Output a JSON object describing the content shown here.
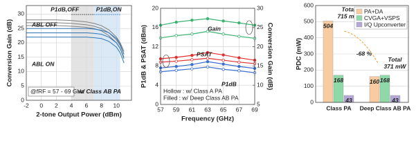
{
  "chart_data": [
    {
      "type": "line",
      "x_label": "2-tone Output Power (dBm)",
      "y_label": "Conversion Gain (dB)",
      "xlim": [
        -2,
        12
      ],
      "xticks": [
        -2,
        0,
        2,
        4,
        6,
        8,
        10
      ],
      "ylim": [
        0,
        33
      ],
      "yticks": [
        0,
        5,
        10,
        15,
        20,
        25,
        30
      ],
      "grid": true,
      "x": [
        -2,
        0,
        2,
        4,
        6,
        7,
        8,
        9,
        10,
        10.5,
        11
      ],
      "groups": [
        {
          "name": "ABL OFF",
          "color": "#7f7f7f",
          "curves": [
            [
              28,
              28,
              28,
              27.8,
              27.3,
              26.8,
              26,
              24.5,
              22,
              20,
              17
            ],
            [
              27,
              27,
              27,
              26.8,
              26.3,
              25.8,
              25,
              23.5,
              21,
              19,
              16
            ],
            [
              26,
              26,
              26,
              25.8,
              25.4,
              25,
              24.2,
              22.5,
              20,
              18,
              15
            ]
          ]
        },
        {
          "name": "ABL ON",
          "color": "#2e75b6",
          "curves": [
            [
              25,
              25,
              25,
              25,
              25,
              24.8,
              24.4,
              23.5,
              21.5,
              19.5,
              16
            ],
            [
              23.5,
              23.5,
              23.5,
              23.5,
              23.5,
              23.3,
              23,
              22,
              20,
              18,
              14.5
            ],
            [
              22,
              22,
              22,
              22,
              22,
              21.8,
              21.5,
              20.5,
              18.5,
              16.5,
              13
            ]
          ]
        }
      ],
      "regions": [
        {
          "label": "P1dB,OFF",
          "range": [
            4,
            7
          ],
          "color": "#d9d9d9"
        },
        {
          "label": "P1dB,ON",
          "range": [
            7,
            10.5
          ],
          "color": "#cfe2f3"
        }
      ],
      "annotations": [
        "@fRF = 57 - 69 GHz",
        "w/ Class AB PA"
      ]
    },
    {
      "type": "line",
      "x_label": "Frequency (GHz)",
      "y_label": "P1dB & PSAT (dBm)",
      "y2_label": "Conversion Gain (dB)",
      "xlim": [
        57,
        69
      ],
      "xticks": [
        57,
        59,
        61,
        63,
        65,
        67,
        69
      ],
      "ylim": [
        0,
        20
      ],
      "yticks": [
        0,
        4,
        8,
        12,
        16,
        20
      ],
      "y2lim": [
        5,
        30
      ],
      "y2ticks": [
        5,
        10,
        15,
        20,
        25,
        30
      ],
      "grid": true,
      "x": [
        57,
        59,
        61,
        63,
        65,
        67,
        69
      ],
      "series": [
        {
          "name": "Gain",
          "color": "#3cb371",
          "axis": "y2",
          "filled": true,
          "values": [
            25.6,
            26.4,
            26.9,
            27.3,
            26.7,
            26.2,
            25.6
          ]
        },
        {
          "color": "#3cb371",
          "axis": "y2",
          "filled": false,
          "values": [
            22.3,
            22.9,
            23.3,
            24,
            23.3,
            22.7,
            22.2
          ]
        },
        {
          "name": "PSAT",
          "color": "#e03030",
          "filled": true,
          "values": [
            9.5,
            9.8,
            10.2,
            10.8,
            10.3,
            9.7,
            9.2
          ]
        },
        {
          "color": "#e03030",
          "filled": false,
          "values": [
            8.8,
            9,
            9.3,
            9.6,
            9.2,
            8.8,
            8.5
          ]
        },
        {
          "name": "P1dB",
          "color": "#3a6fd0",
          "filled": true,
          "values": [
            7.6,
            7.9,
            8.3,
            8.9,
            8.4,
            7.9,
            7.5
          ]
        },
        {
          "color": "#3a6fd0",
          "filled": false,
          "values": [
            6.8,
            7.1,
            7.4,
            7.8,
            7.3,
            7,
            6.6
          ]
        }
      ],
      "notes": [
        "Hollow : w/ Class A PA",
        "Filled : w/ Deep Class AB PA"
      ]
    },
    {
      "type": "bar",
      "y_label": "PDC (mW)",
      "categories": [
        "Class PA",
        "Deep Class AB PA"
      ],
      "ylim": [
        0,
        600
      ],
      "yticks": [
        0,
        100,
        200,
        300,
        400,
        500,
        600
      ],
      "grid": true,
      "legend": "upper right",
      "series": [
        {
          "name": "PA+DA",
          "color": "#f8cba0",
          "values": [
            504,
            160
          ]
        },
        {
          "name": "CVGA+VSPS",
          "color": "#8fd9a8",
          "values": [
            168,
            168
          ]
        },
        {
          "name": "I/Q Upconverter",
          "color": "#b4a7d6",
          "values": [
            43,
            43
          ]
        }
      ],
      "totals": {
        "title": "Total",
        "values": [
          715,
          371
        ],
        "value_labels": [
          "715 mW",
          "371 mW"
        ]
      },
      "reduction_label": "-68 %"
    }
  ]
}
